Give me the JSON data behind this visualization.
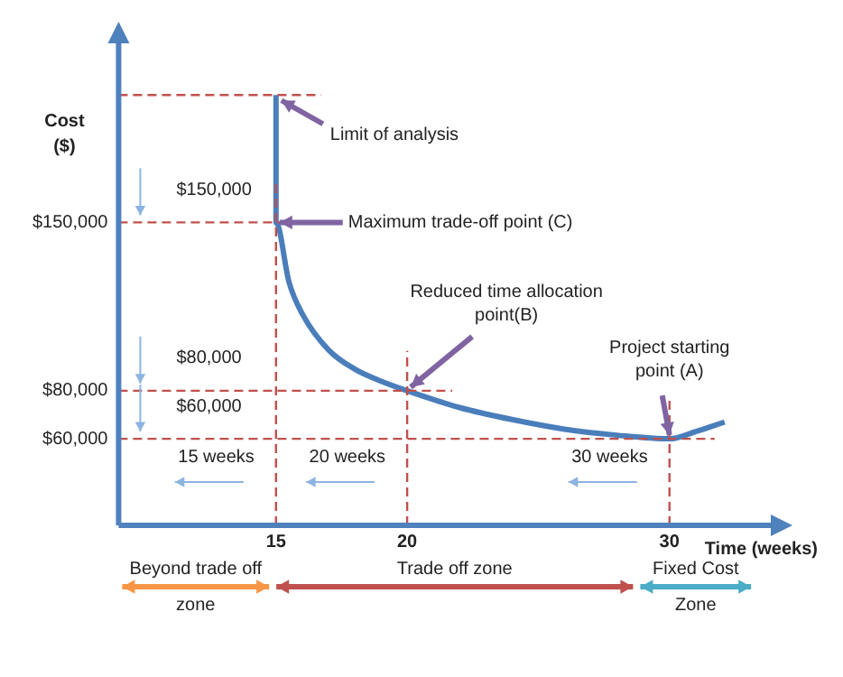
{
  "chart_data": {
    "type": "line",
    "xlabel": "Time (weeks)",
    "ylabel": "Cost ($)",
    "x": [
      15,
      15,
      15.5,
      16,
      17,
      18,
      19,
      20,
      22,
      24,
      26,
      28,
      30,
      31,
      32.1
    ],
    "series": [
      {
        "color": "#4a7ebb",
        "values": [
          203000,
          150000,
          125000,
          112000,
          97000,
          89000,
          84000,
          80000,
          73000,
          68000,
          64000,
          61500,
          60000,
          63000,
          67000
        ]
      }
    ],
    "xlim": [
      9,
      34
    ],
    "ylim": [
      24000,
      226000
    ],
    "xticks": [
      15,
      20,
      30
    ],
    "yticks": [
      {
        "value": 60000,
        "label": "$60,000"
      },
      {
        "value": 80000,
        "label": "$80,000"
      },
      {
        "value": 150000,
        "label": "$150,000"
      }
    ],
    "grid": false,
    "legend": false,
    "marker": "none",
    "line_style": "solid",
    "ref_lines": [
      {
        "axis": "y",
        "value": 203000,
        "label": null,
        "color": "#c0504d",
        "line_style": "dashed"
      },
      {
        "axis": "y",
        "value": 150000,
        "label": "$150,000",
        "color": "#c0504d",
        "line_style": "dashed"
      },
      {
        "axis": "y",
        "value": 80000,
        "label": "$80,000",
        "color": "#c0504d",
        "line_style": "dashed"
      },
      {
        "axis": "y",
        "value": 60000,
        "label": "$60,000",
        "color": "#c0504d",
        "line_style": "dashed"
      },
      {
        "axis": "x",
        "value": 15,
        "label": "15 weeks",
        "color": "#c0504d",
        "line_style": "dashed"
      },
      {
        "axis": "x",
        "value": 20,
        "label": "20 weeks",
        "color": "#c0504d",
        "line_style": "dashed"
      },
      {
        "axis": "x",
        "value": 30,
        "label": "30 weeks",
        "color": "#c0504d",
        "line_style": "dashed"
      }
    ],
    "annotations": [
      {
        "text": "Limit of analysis",
        "x": 15,
        "y": 203000
      },
      {
        "text": "Maximum trade-off point (C)",
        "x": 15,
        "y": 150000
      },
      {
        "text": "Reduced time allocation point(B)",
        "x": 20,
        "y": 80000
      },
      {
        "text": "Project starting point (A)",
        "x": 30,
        "y": 60000
      },
      "Beyond trade off zone",
      "Trade off zone",
      "Fixed Cost Zone"
    ]
  }
}
